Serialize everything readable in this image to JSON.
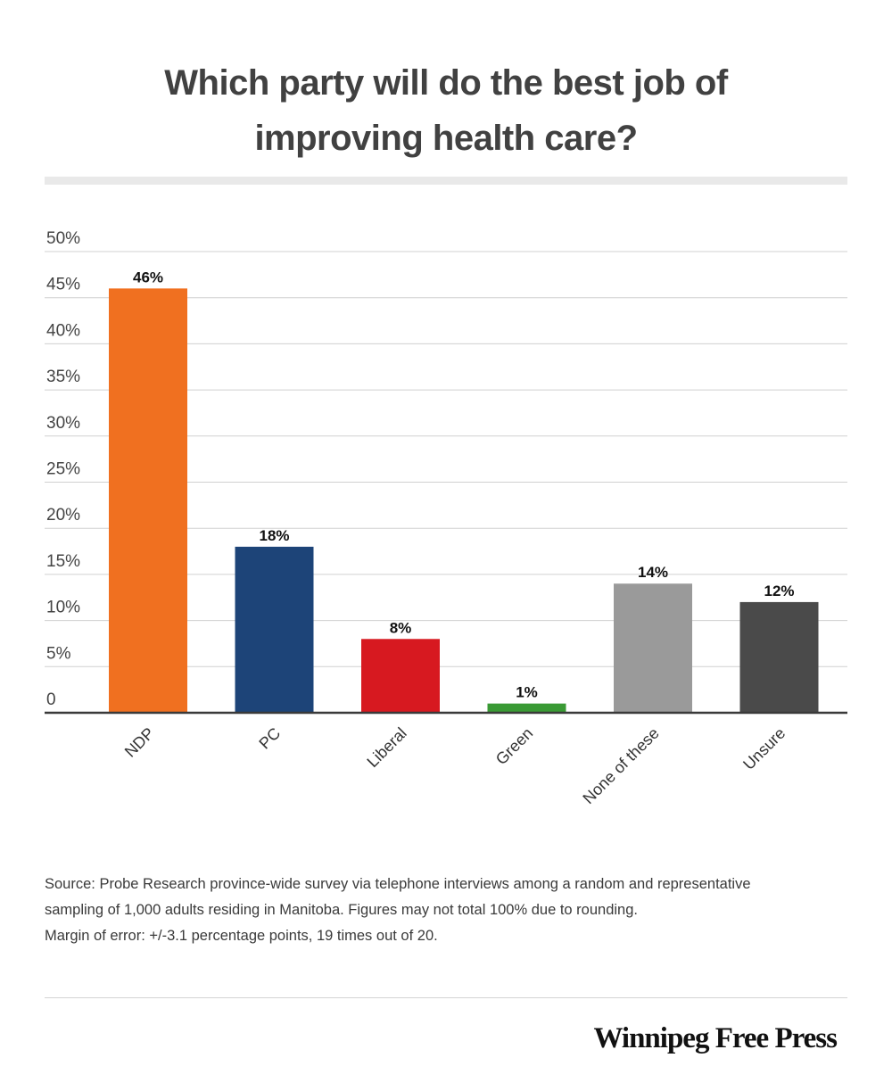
{
  "title_line1": "Which party will do the best job of",
  "title_line2": "improving health care?",
  "chart_data": {
    "type": "bar",
    "categories": [
      "NDP",
      "PC",
      "Liberal",
      "Green",
      "None of these",
      "Unsure"
    ],
    "values": [
      46,
      18,
      8,
      1,
      14,
      12
    ],
    "value_labels": [
      "46%",
      "18%",
      "8%",
      "1%",
      "14%",
      "12%"
    ],
    "colors": [
      "#f07020",
      "#1d4478",
      "#d71920",
      "#3a9a35",
      "#9a9a9a",
      "#4a4a4a"
    ],
    "ylim": [
      0,
      50
    ],
    "y_ticks": [
      0,
      5,
      10,
      15,
      20,
      25,
      30,
      35,
      40,
      45,
      50
    ],
    "y_tick_labels": [
      "0",
      "5%",
      "10%",
      "15%",
      "20%",
      "25%",
      "30%",
      "35%",
      "40%",
      "45%",
      "50%"
    ],
    "grid": true,
    "xlabel": "",
    "ylabel": ""
  },
  "source_lines": [
    "Source:  Probe Research province-wide survey via telephone interviews among a random and representative",
    "sampling of 1,000 adults residing in Manitoba. Figures may not total 100% due to rounding.",
    "Margin of error: +/-3.1 percentage points, 19 times out of 20."
  ],
  "brand": "Winnipeg Free Press"
}
